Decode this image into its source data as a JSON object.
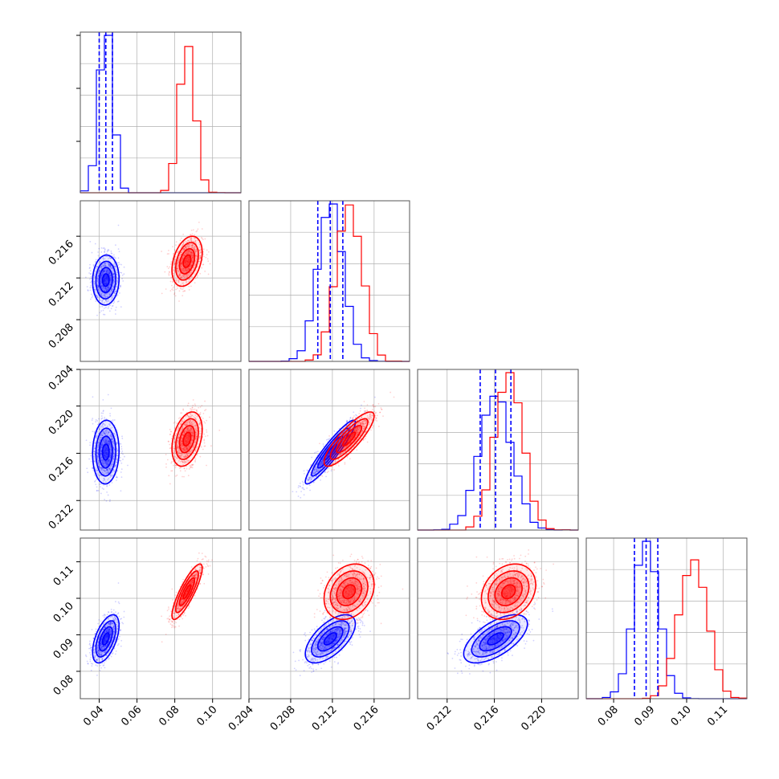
{
  "colors": {
    "blue": "#0000ff",
    "red": "#ff0000",
    "grid": "#b0b0b0",
    "axes": "#555555"
  },
  "chart_data": {
    "type": "corner",
    "params": [
      {
        "range": [
          0.03,
          0.115
        ],
        "ticks": [
          0.04,
          0.06,
          0.08,
          0.1
        ],
        "tick_labels": [
          "0.04",
          "0.06",
          "0.08",
          "0.10"
        ]
      },
      {
        "range": [
          0.204,
          0.2194
        ],
        "ticks": [
          0.204,
          0.208,
          0.212,
          0.216
        ],
        "tick_labels": [
          "0.204",
          "0.208",
          "0.212",
          "0.216"
        ]
      },
      {
        "range": [
          0.2095,
          0.2231
        ],
        "ticks": [
          0.212,
          0.216,
          0.22
        ],
        "tick_labels": [
          "0.212",
          "0.216",
          "0.220"
        ]
      },
      {
        "range": [
          0.0725,
          0.1165
        ],
        "ticks": [
          0.08,
          0.09,
          0.1,
          0.11
        ],
        "tick_labels": [
          "0.08",
          "0.09",
          "0.10",
          "0.11"
        ]
      }
    ],
    "left_labels": [
      null,
      {
        "ticks": [
          0.208,
          0.212,
          0.216
        ],
        "tick_labels": [
          "0.208",
          "0.212",
          "0.216"
        ]
      },
      {
        "ticks": [
          0.204,
          0.212,
          0.216,
          0.22
        ],
        "tick_labels": [
          "0.204",
          "0.212",
          "0.216",
          "0.220"
        ]
      },
      {
        "ticks": [
          0.08,
          0.09,
          0.1,
          0.11
        ],
        "tick_labels": [
          "0.08",
          "0.09",
          "0.10",
          "0.11"
        ]
      }
    ],
    "series": [
      {
        "color": "blue",
        "mean": [
          0.0435,
          0.2118,
          0.2161,
          0.0889
        ],
        "sd": [
          0.0035,
          0.0012,
          0.00135,
          0.0033
        ],
        "corr": {
          "1-0": 0.05,
          "2-0": 0.05,
          "2-1": 0.93,
          "3-0": 0.55,
          "3-1": 0.62,
          "3-2": 0.62
        },
        "quantiles": [
          [
            0.04,
            0.0435,
            0.047
          ],
          [
            0.2106,
            0.2118,
            0.213
          ],
          [
            0.2148,
            0.2161,
            0.2174
          ],
          [
            0.0857,
            0.0889,
            0.0921
          ]
        ]
      },
      {
        "color": "red",
        "mean": [
          0.0865,
          0.2136,
          0.2172,
          0.1018
        ],
        "sd": [
          0.004,
          0.0012,
          0.00115,
          0.0038
        ],
        "corr": {
          "1-0": 0.35,
          "2-0": 0.35,
          "2-1": 0.85,
          "3-0": 0.85,
          "3-1": 0.25,
          "3-2": 0.25
        }
      }
    ]
  }
}
